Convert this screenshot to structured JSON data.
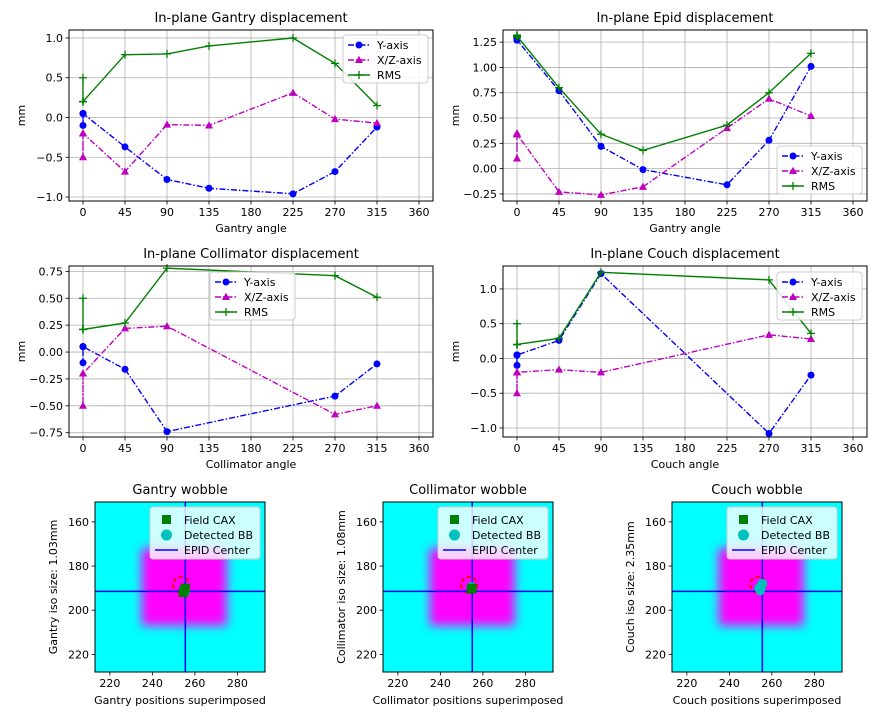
{
  "colors": {
    "y_axis": "#0000ff",
    "xz_axis": "#bf00bf",
    "rms": "#008000",
    "image_bg": "#00ffff",
    "image_field": "#ff00ff",
    "field_cax": "#008000",
    "detected_bb": "#00bfbf",
    "epid_center": "#0000ff",
    "bb_outline": "#ff0000"
  },
  "legend_labels": [
    "Y-axis",
    "X/Z-axis",
    "RMS"
  ],
  "wobble_legend_labels": [
    "Field CAX",
    "Detected BB",
    "EPID Center"
  ],
  "chart_data": [
    {
      "type": "line",
      "title": "In-plane Gantry displacement",
      "xlabel": "Gantry angle",
      "ylabel": "mm",
      "xlim": [
        -15,
        375
      ],
      "ylim": [
        -1.05,
        1.1
      ],
      "xticks": [
        0,
        45,
        90,
        135,
        180,
        225,
        270,
        315,
        360
      ],
      "yticks": [
        -1.0,
        -0.5,
        0.0,
        0.5,
        1.0
      ],
      "ytick_labels": [
        "−1.0",
        "−0.5",
        "0.0",
        "0.5",
        "1.0"
      ],
      "grid": true,
      "legend": "upper-right",
      "series": [
        {
          "name": "Y-axis",
          "x": [
            0,
            0,
            0,
            0,
            45,
            90,
            135,
            225,
            270,
            315
          ],
          "y": [
            0.05,
            -0.1,
            0.05,
            0.05,
            -0.37,
            -0.78,
            -0.89,
            -0.96,
            -0.68,
            -0.12
          ]
        },
        {
          "name": "X/Z-axis",
          "x": [
            0,
            0,
            0,
            0,
            45,
            90,
            135,
            225,
            270,
            315
          ],
          "y": [
            -0.2,
            -0.5,
            -0.2,
            -0.2,
            -0.68,
            -0.09,
            -0.1,
            0.31,
            -0.02,
            -0.07
          ]
        },
        {
          "name": "RMS",
          "x": [
            0,
            0,
            0,
            0,
            45,
            90,
            135,
            225,
            270,
            315
          ],
          "y": [
            0.2,
            0.5,
            0.2,
            0.2,
            0.79,
            0.8,
            0.9,
            1.0,
            0.68,
            0.15
          ]
        }
      ]
    },
    {
      "type": "line",
      "title": "In-plane Epid displacement",
      "xlabel": "Gantry angle",
      "ylabel": "mm",
      "xlim": [
        -15,
        375
      ],
      "ylim": [
        -0.32,
        1.37
      ],
      "xticks": [
        0,
        45,
        90,
        135,
        180,
        225,
        270,
        315,
        360
      ],
      "yticks": [
        -0.25,
        0.0,
        0.25,
        0.5,
        0.75,
        1.0,
        1.25
      ],
      "ytick_labels": [
        "−0.25",
        "0.00",
        "0.25",
        "0.50",
        "0.75",
        "1.00",
        "1.25"
      ],
      "grid": true,
      "legend": "lower-right",
      "series": [
        {
          "name": "Y-axis",
          "x": [
            0,
            0,
            0,
            0,
            45,
            90,
            135,
            225,
            270,
            315
          ],
          "y": [
            1.27,
            1.29,
            1.28,
            1.27,
            0.77,
            0.22,
            -0.01,
            -0.16,
            0.28,
            1.01
          ]
        },
        {
          "name": "X/Z-axis",
          "x": [
            0,
            0,
            0,
            0,
            45,
            90,
            135,
            225,
            270,
            315
          ],
          "y": [
            0.34,
            0.1,
            0.35,
            0.34,
            -0.23,
            -0.26,
            -0.18,
            0.4,
            0.69,
            0.52
          ]
        },
        {
          "name": "RMS",
          "x": [
            0,
            0,
            0,
            0,
            45,
            90,
            135,
            225,
            270,
            315
          ],
          "y": [
            1.31,
            1.3,
            1.32,
            1.31,
            0.8,
            0.34,
            0.18,
            0.43,
            0.75,
            1.14
          ]
        }
      ]
    },
    {
      "type": "line",
      "title": "In-plane Collimator displacement",
      "xlabel": "Collimator angle",
      "ylabel": "mm",
      "xlim": [
        -15,
        375
      ],
      "ylim": [
        -0.79,
        0.8
      ],
      "xticks": [
        0,
        45,
        90,
        135,
        180,
        225,
        270,
        315,
        360
      ],
      "yticks": [
        -0.75,
        -0.5,
        -0.25,
        0.0,
        0.25,
        0.5,
        0.75
      ],
      "ytick_labels": [
        "−0.75",
        "−0.50",
        "−0.25",
        "0.00",
        "0.25",
        "0.50",
        "0.75"
      ],
      "grid": true,
      "legend": "upper-center",
      "series": [
        {
          "name": "Y-axis",
          "x": [
            0,
            0,
            0,
            0,
            45,
            90,
            270,
            315
          ],
          "y": [
            0.05,
            -0.1,
            0.05,
            0.05,
            -0.16,
            -0.74,
            -0.41,
            -0.11
          ]
        },
        {
          "name": "X/Z-axis",
          "x": [
            0,
            0,
            0,
            0,
            45,
            90,
            270,
            315
          ],
          "y": [
            -0.2,
            -0.5,
            -0.2,
            -0.2,
            0.22,
            0.24,
            -0.58,
            -0.5
          ]
        },
        {
          "name": "RMS",
          "x": [
            0,
            0,
            0,
            0,
            45,
            90,
            270,
            315
          ],
          "y": [
            0.21,
            0.5,
            0.21,
            0.21,
            0.27,
            0.78,
            0.71,
            0.51
          ]
        }
      ]
    },
    {
      "type": "line",
      "title": "In-plane Couch displacement",
      "xlabel": "Couch angle",
      "ylabel": "mm",
      "xlim": [
        -15,
        375
      ],
      "ylim": [
        -1.13,
        1.33
      ],
      "xticks": [
        0,
        45,
        90,
        135,
        180,
        225,
        270,
        315,
        360
      ],
      "yticks": [
        -1.0,
        -0.5,
        0.0,
        0.5,
        1.0
      ],
      "ytick_labels": [
        "−1.0",
        "−0.5",
        "0.0",
        "0.5",
        "1.0"
      ],
      "grid": true,
      "legend": "upper-right",
      "series": [
        {
          "name": "Y-axis",
          "x": [
            0,
            0,
            0,
            0,
            45,
            90,
            270,
            315
          ],
          "y": [
            0.05,
            -0.1,
            0.05,
            0.05,
            0.26,
            1.22,
            -1.08,
            -0.24
          ]
        },
        {
          "name": "X/Z-axis",
          "x": [
            0,
            0,
            0,
            0,
            45,
            90,
            270,
            315
          ],
          "y": [
            -0.2,
            -0.5,
            -0.2,
            -0.2,
            -0.16,
            -0.2,
            0.34,
            0.28
          ]
        },
        {
          "name": "RMS",
          "x": [
            0,
            0,
            0,
            0,
            45,
            90,
            270,
            315
          ],
          "y": [
            0.2,
            0.5,
            0.2,
            0.2,
            0.29,
            1.24,
            1.13,
            0.36
          ]
        }
      ]
    },
    {
      "type": "heatmap",
      "title": "Gantry wobble",
      "xlabel": "Gantry positions superimposed",
      "ylabel": "Gantry iso size: 1.03mm",
      "xlim": [
        213,
        293
      ],
      "ylim": [
        228,
        151
      ],
      "xticks": [
        220,
        240,
        260,
        280
      ],
      "yticks": [
        160,
        180,
        200,
        220
      ],
      "field": {
        "x0": 235,
        "x1": 275,
        "y0": 172,
        "y1": 207
      },
      "epid_center": {
        "x": 255.5,
        "y": 191.5
      },
      "field_cax": [
        {
          "x": 255,
          "y": 191
        },
        {
          "x": 255.5,
          "y": 190
        },
        {
          "x": 254.5,
          "y": 192
        }
      ],
      "detected_bb": [
        {
          "x": 255,
          "y": 190.5
        },
        {
          "x": 255.5,
          "y": 191.5
        }
      ],
      "bb_ring": {
        "x": 253.5,
        "y": 188.5
      },
      "legend": "upper-right"
    },
    {
      "type": "heatmap",
      "title": "Collimator wobble",
      "xlabel": "Collimator positions superimposed",
      "ylabel": "Collimator iso size: 1.08mm",
      "xlim": [
        213,
        293
      ],
      "ylim": [
        228,
        151
      ],
      "xticks": [
        220,
        240,
        260,
        280
      ],
      "yticks": [
        160,
        180,
        200,
        220
      ],
      "field": {
        "x0": 235,
        "x1": 275,
        "y0": 172,
        "y1": 207
      },
      "epid_center": {
        "x": 255,
        "y": 191.5
      },
      "field_cax": [
        {
          "x": 255,
          "y": 190
        },
        {
          "x": 254.5,
          "y": 190.5
        }
      ],
      "detected_bb": [
        {
          "x": 254.5,
          "y": 189.5
        }
      ],
      "bb_ring": {
        "x": 253.5,
        "y": 188.5
      },
      "legend": "upper-right"
    },
    {
      "type": "heatmap",
      "title": "Couch wobble",
      "xlabel": "Couch positions superimposed",
      "ylabel": "Couch iso size: 2.35mm",
      "xlim": [
        213,
        293
      ],
      "ylim": [
        228,
        151
      ],
      "xticks": [
        220,
        240,
        260,
        280
      ],
      "yticks": [
        160,
        180,
        200,
        220
      ],
      "field": {
        "x0": 235,
        "x1": 275,
        "y0": 172,
        "y1": 207
      },
      "epid_center": {
        "x": 255.5,
        "y": 191.5
      },
      "field_cax": [],
      "detected_bb": [
        {
          "x": 255,
          "y": 189
        },
        {
          "x": 255.5,
          "y": 188
        },
        {
          "x": 254.5,
          "y": 191
        },
        {
          "x": 254,
          "y": 190
        }
      ],
      "bb_ring": {
        "x": 253.5,
        "y": 188.5
      },
      "legend": "upper-right"
    }
  ]
}
